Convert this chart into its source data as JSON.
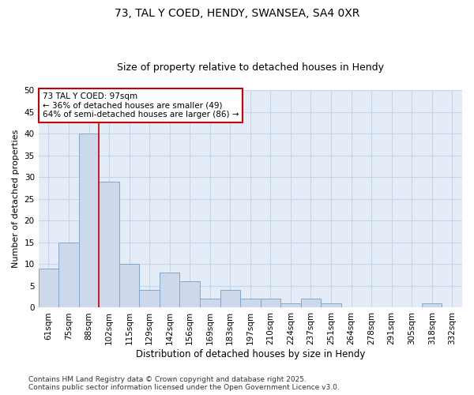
{
  "title1": "73, TAL Y COED, HENDY, SWANSEA, SA4 0XR",
  "title2": "Size of property relative to detached houses in Hendy",
  "xlabel": "Distribution of detached houses by size in Hendy",
  "ylabel": "Number of detached properties",
  "categories": [
    "61sqm",
    "75sqm",
    "88sqm",
    "102sqm",
    "115sqm",
    "129sqm",
    "142sqm",
    "156sqm",
    "169sqm",
    "183sqm",
    "197sqm",
    "210sqm",
    "224sqm",
    "237sqm",
    "251sqm",
    "264sqm",
    "278sqm",
    "291sqm",
    "305sqm",
    "318sqm",
    "332sqm"
  ],
  "values": [
    9,
    15,
    40,
    29,
    10,
    4,
    8,
    6,
    2,
    4,
    2,
    2,
    1,
    2,
    1,
    0,
    0,
    0,
    0,
    1,
    0
  ],
  "bar_color": "#cdd9ea",
  "bar_edge_color": "#7fa8ce",
  "red_line_x": 2.5,
  "annotation_line1": "73 TAL Y COED: 97sqm",
  "annotation_line2": "← 36% of detached houses are smaller (49)",
  "annotation_line3": "64% of semi-detached houses are larger (86) →",
  "annotation_box_color": "#ffffff",
  "annotation_edge_color": "#cc0000",
  "ylim": [
    0,
    50
  ],
  "yticks": [
    0,
    5,
    10,
    15,
    20,
    25,
    30,
    35,
    40,
    45,
    50
  ],
  "grid_color": "#c8d4e8",
  "bg_color": "#e4ecf7",
  "footer": "Contains HM Land Registry data © Crown copyright and database right 2025.\nContains public sector information licensed under the Open Government Licence v3.0.",
  "title1_fontsize": 10,
  "title2_fontsize": 9,
  "xlabel_fontsize": 8.5,
  "ylabel_fontsize": 8,
  "tick_fontsize": 7.5,
  "annotation_fontsize": 7.5,
  "footer_fontsize": 6.5
}
